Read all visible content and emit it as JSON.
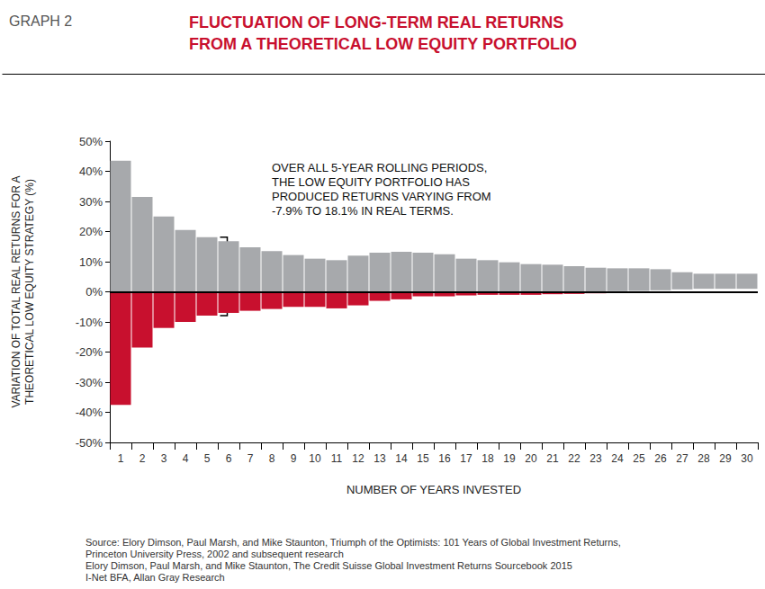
{
  "chart_data": {
    "type": "bar",
    "graph_label": "GRAPH 2",
    "title": "FLUCTUATION OF LONG-TERM REAL RETURNS\nFROM A THEORETICAL LOW EQUITY PORTFOLIO",
    "y_label": "VARIATION OF TOTAL REAL RETURNS FOR A\nTHEORETICAL LOW EQUITY STRATEGY (%)",
    "x_label": "NUMBER OF YEARS INVESTED",
    "annotation": {
      "text": "OVER ALL 5-YEAR ROLLING PERIODS,\nTHE LOW EQUITY PORTFOLIO HAS\nPRODUCED RETURNS VARYING FROM\n-7.9% TO 18.1% IN REAL TERMS.",
      "x": "5"
    },
    "source": "Source: Elory Dimson, Paul Marsh, and Mike Staunton, Triumph of the Optimists: 101 Years of Global Investment Returns,\nPrinceton University Press, 2002 and subsequent research\nElory Dimson, Paul Marsh, and Mike Staunton, The Credit Suisse Global Investment Returns Sourcebook 2015\nI-Net BFA, Allan Gray Research",
    "categories": [
      "1",
      "2",
      "3",
      "4",
      "5",
      "6",
      "7",
      "8",
      "9",
      "10",
      "11",
      "12",
      "13",
      "14",
      "15",
      "16",
      "17",
      "18",
      "19",
      "20",
      "21",
      "22",
      "23",
      "24",
      "25",
      "26",
      "27",
      "28",
      "29",
      "30"
    ],
    "series": [
      {
        "color": "#a7a9ac",
        "values": [
          43.5,
          31.5,
          25,
          20.5,
          18.1,
          16.8,
          14.8,
          13.5,
          12.2,
          11,
          10.5,
          12,
          13,
          13.3,
          13,
          12.5,
          11,
          10.5,
          9.8,
          9.2,
          9,
          8.5,
          8,
          7.8,
          7.8,
          7.5,
          6.5,
          6,
          6,
          6
        ]
      },
      {
        "color": "#c8102e",
        "values": [
          -37.5,
          -18.5,
          -12,
          -10,
          -7.9,
          -7,
          -6.3,
          -5.7,
          -5,
          -5,
          -5.5,
          -4.5,
          -3,
          -2.5,
          -1.5,
          -1.5,
          -1.2,
          -1,
          -1,
          -1,
          -0.8,
          -0.7,
          -0.5,
          0.2,
          0.3,
          0.5,
          0.8,
          1,
          1,
          1
        ]
      }
    ],
    "ylim": [
      -50,
      50
    ],
    "yticks": [
      {
        "value": -50,
        "label": "-50%"
      },
      {
        "value": -40,
        "label": "-40%"
      },
      {
        "value": -30,
        "label": "-30%"
      },
      {
        "value": -20,
        "label": "-20%"
      },
      {
        "value": -10,
        "label": "-10%"
      },
      {
        "value": 0,
        "label": "0%"
      },
      {
        "value": 10,
        "label": "10%"
      },
      {
        "value": 20,
        "label": "20%"
      },
      {
        "value": 30,
        "label": "30%"
      },
      {
        "value": 40,
        "label": "40%"
      },
      {
        "value": 50,
        "label": "50%"
      }
    ],
    "grid": false
  }
}
